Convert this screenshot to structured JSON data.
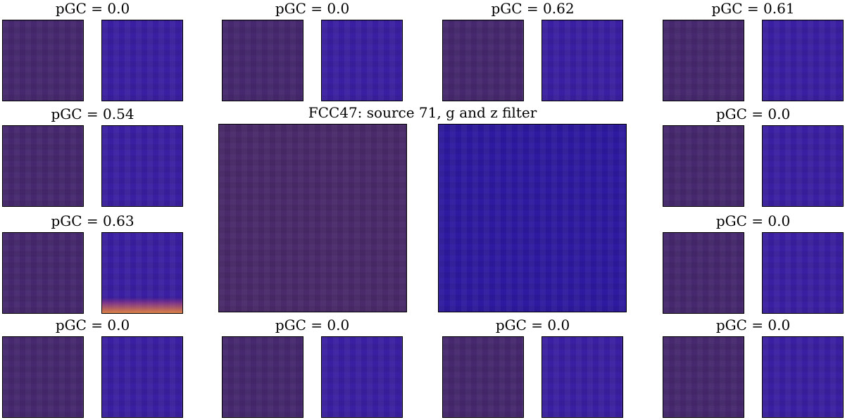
{
  "center_title": "FCC47: source 71, g and z filter",
  "panels": [
    {
      "label": "pGC = 0.0"
    },
    {
      "label": "pGC = 0.0"
    },
    {
      "label": "pGC = 0.62"
    },
    {
      "label": "pGC = 0.61"
    },
    {
      "label": "pGC = 0.54"
    },
    {
      "label": "pGC = 0.0"
    },
    {
      "label": "pGC = 0.63"
    },
    {
      "label": "pGC = 0.0"
    },
    {
      "label": "pGC = 0.0"
    },
    {
      "label": "pGC = 0.0"
    },
    {
      "label": "pGC = 0.0"
    },
    {
      "label": "pGC = 0.0"
    }
  ],
  "colors": {
    "g_colormap": "viridis",
    "z_colormap": "plasma"
  }
}
